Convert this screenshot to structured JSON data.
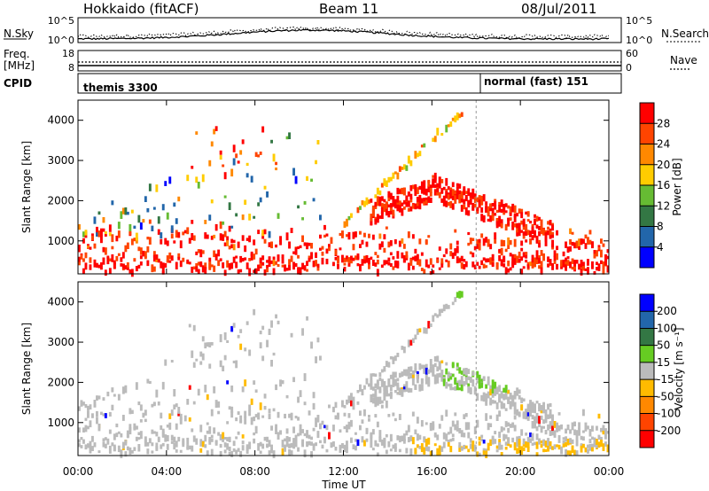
{
  "header": {
    "station": "Hokkaido (fitACF)",
    "beam": "Beam 11",
    "date": "08/Jul/2011"
  },
  "noise_panel": {
    "left_label": "N.Sky",
    "left_ticks": [
      "10^5",
      "10^0"
    ],
    "right_ticks": [
      "10^5",
      "10^0"
    ],
    "right_label": "N.Search"
  },
  "freq_panel": {
    "left_label_top": "Freq.",
    "left_label_bottom": "[MHz]",
    "left_ticks": [
      "18",
      "8"
    ],
    "right_ticks": [
      "60",
      "0"
    ],
    "right_label": "Nave"
  },
  "cpid_panel": {
    "label": "CPID",
    "segments": [
      {
        "text": "themis 3300",
        "start_hour": 0
      },
      {
        "text": "normal (fast) 151",
        "start_hour": 18.0
      }
    ]
  },
  "x_axis": {
    "label": "Time UT",
    "ticks": [
      "00:00",
      "04:00",
      "08:00",
      "12:00",
      "16:00",
      "20:00",
      "00:00"
    ],
    "range_hours": [
      0,
      24
    ]
  },
  "y_axis": {
    "label": "Slant Range [km]",
    "ticks": [
      "1000",
      "2000",
      "3000",
      "4000"
    ],
    "range_km": [
      180,
      4500
    ]
  },
  "power_colorbar": {
    "label": "Power [dB]",
    "ticks": [
      "28",
      "24",
      "20",
      "16",
      "12",
      "8",
      "4"
    ],
    "colors": [
      "#ff0000",
      "#ff4400",
      "#ff8800",
      "#ffcc00",
      "#66bb33",
      "#337744",
      "#2266aa",
      "#0000ff"
    ]
  },
  "velocity_colorbar": {
    "label": "Velocity [m s⁻¹]",
    "ticks": [
      "200",
      "100",
      "50",
      "15",
      "-15",
      "-50",
      "-100",
      "-200"
    ],
    "colors": [
      "#0000ff",
      "#2266aa",
      "#337744",
      "#66cc22",
      "#bbbbbb",
      "#ffbb00",
      "#ff8800",
      "#ff4400",
      "#ff0000"
    ]
  },
  "chart_data": [
    {
      "type": "heatmap",
      "title": "Power",
      "xlabel": "Time UT",
      "ylabel": "Slant Range [km]",
      "xlim": [
        0,
        24
      ],
      "ylim": [
        180,
        4500
      ],
      "colorbar_label": "Power [dB]",
      "colorbar_range": [
        0,
        30
      ],
      "features": [
        {
          "region": "low-range band",
          "time_hours": [
            0,
            24
          ],
          "range_km": [
            200,
            1500
          ],
          "power_db": 28
        },
        {
          "region": "rising arc",
          "time_hours": [
            12,
            17.5
          ],
          "range_km": [
            1300,
            4400
          ],
          "power_db": 20
        },
        {
          "region": "strong band after 14h",
          "time_hours": [
            13.5,
            21
          ],
          "range_km": [
            1800,
            2700
          ],
          "power_db": 28
        },
        {
          "region": "scattered blue returns",
          "time_hours": [
            0,
            8
          ],
          "range_km": [
            1200,
            3600
          ],
          "power_db": 6
        }
      ]
    },
    {
      "type": "heatmap",
      "title": "Velocity",
      "xlabel": "Time UT",
      "ylabel": "Slant Range [km]",
      "xlim": [
        0,
        24
      ],
      "ylim": [
        180,
        4500
      ],
      "colorbar_label": "Velocity [m s⁻¹]",
      "colorbar_range": [
        -200,
        200
      ],
      "features": [
        {
          "region": "ground scatter (grey)",
          "time_hours": [
            0,
            24
          ],
          "range_km": [
            300,
            3300
          ],
          "velocity_ms": 0
        },
        {
          "region": "positive velocity patch",
          "time_hours": [
            16.5,
            20
          ],
          "range_km": [
            1800,
            4400
          ],
          "velocity_ms": 30
        },
        {
          "region": "negative velocity near ground",
          "time_hours": [
            16,
            24
          ],
          "range_km": [
            200,
            500
          ],
          "velocity_ms": -40
        }
      ]
    }
  ]
}
